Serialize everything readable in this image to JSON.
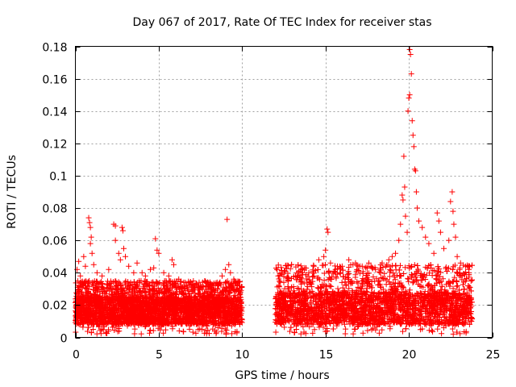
{
  "chart_data": {
    "type": "scatter",
    "title": "Day 067 of 2017, Rate Of TEC Index for receiver stas",
    "xlabel": "GPS time / hours",
    "ylabel": "ROTI / TECUs",
    "xlim": [
      0,
      25
    ],
    "ylim": [
      0,
      0.18
    ],
    "x_ticks": [
      0,
      5,
      10,
      15,
      20,
      25
    ],
    "x_tick_labels": [
      "0",
      "5",
      "10",
      "15",
      "20",
      "25"
    ],
    "y_ticks": [
      0,
      0.02,
      0.04,
      0.06,
      0.08,
      0.1,
      0.12,
      0.14,
      0.16,
      0.18
    ],
    "y_tick_labels": [
      "0",
      "0.02",
      "0.04",
      "0.06",
      "0.08",
      "0.1",
      "0.12",
      "0.14",
      "0.16",
      "0.18"
    ],
    "grid": true,
    "marker": "+",
    "color": "#ff0000",
    "series": [
      {
        "name": "ROTI",
        "segments": [
          {
            "x_range": [
              0,
              10
            ],
            "baseline": [
              0.008,
              0.025
            ],
            "typical_max": 0.035
          },
          {
            "x_range": [
              12,
              23.8
            ],
            "baseline": [
              0.008,
              0.028
            ],
            "typical_max": 0.045
          }
        ],
        "points": [
          [
            0.1,
            0.042
          ],
          [
            0.2,
            0.047
          ],
          [
            0.3,
            0.038
          ],
          [
            0.5,
            0.05
          ],
          [
            0.6,
            0.044
          ],
          [
            0.8,
            0.074
          ],
          [
            0.85,
            0.071
          ],
          [
            0.9,
            0.068
          ],
          [
            0.95,
            0.062
          ],
          [
            0.9,
            0.058
          ],
          [
            1.0,
            0.052
          ],
          [
            1.1,
            0.045
          ],
          [
            1.3,
            0.04
          ],
          [
            1.6,
            0.038
          ],
          [
            2.0,
            0.042
          ],
          [
            2.3,
            0.07
          ],
          [
            2.4,
            0.069
          ],
          [
            2.4,
            0.06
          ],
          [
            2.6,
            0.052
          ],
          [
            2.7,
            0.048
          ],
          [
            2.8,
            0.068
          ],
          [
            2.85,
            0.066
          ],
          [
            2.9,
            0.055
          ],
          [
            3.0,
            0.05
          ],
          [
            3.2,
            0.044
          ],
          [
            3.5,
            0.04
          ],
          [
            3.7,
            0.046
          ],
          [
            4.0,
            0.04
          ],
          [
            4.2,
            0.038
          ],
          [
            4.5,
            0.042
          ],
          [
            4.7,
            0.043
          ],
          [
            4.8,
            0.061
          ],
          [
            4.9,
            0.054
          ],
          [
            5.0,
            0.052
          ],
          [
            5.3,
            0.04
          ],
          [
            5.6,
            0.038
          ],
          [
            5.8,
            0.048
          ],
          [
            5.9,
            0.045
          ],
          [
            6.2,
            0.036
          ],
          [
            6.5,
            0.034
          ],
          [
            7.0,
            0.033
          ],
          [
            7.5,
            0.032
          ],
          [
            8.0,
            0.03
          ],
          [
            8.5,
            0.034
          ],
          [
            8.8,
            0.038
          ],
          [
            9.0,
            0.042
          ],
          [
            9.1,
            0.073
          ],
          [
            9.2,
            0.045
          ],
          [
            9.3,
            0.04
          ],
          [
            9.5,
            0.036
          ],
          [
            9.7,
            0.03
          ],
          [
            9.9,
            0.028
          ],
          [
            12.2,
            0.032
          ],
          [
            12.5,
            0.034
          ],
          [
            12.8,
            0.03
          ],
          [
            13.2,
            0.038
          ],
          [
            13.6,
            0.042
          ],
          [
            14.0,
            0.04
          ],
          [
            14.3,
            0.044
          ],
          [
            14.6,
            0.048
          ],
          [
            14.9,
            0.05
          ],
          [
            15.0,
            0.054
          ],
          [
            15.1,
            0.067
          ],
          [
            15.15,
            0.065
          ],
          [
            15.3,
            0.046
          ],
          [
            15.6,
            0.042
          ],
          [
            16.0,
            0.044
          ],
          [
            16.4,
            0.048
          ],
          [
            16.8,
            0.046
          ],
          [
            17.2,
            0.044
          ],
          [
            17.6,
            0.046
          ],
          [
            18.0,
            0.042
          ],
          [
            18.4,
            0.046
          ],
          [
            18.8,
            0.048
          ],
          [
            19.0,
            0.05
          ],
          [
            19.2,
            0.052
          ],
          [
            19.4,
            0.06
          ],
          [
            19.5,
            0.07
          ],
          [
            19.6,
            0.088
          ],
          [
            19.65,
            0.085
          ],
          [
            19.7,
            0.112
          ],
          [
            19.75,
            0.093
          ],
          [
            19.8,
            0.075
          ],
          [
            19.9,
            0.065
          ],
          [
            19.95,
            0.14
          ],
          [
            20.0,
            0.148
          ],
          [
            20.05,
            0.15
          ],
          [
            20.05,
            0.178
          ],
          [
            20.1,
            0.175
          ],
          [
            20.15,
            0.163
          ],
          [
            20.2,
            0.134
          ],
          [
            20.25,
            0.125
          ],
          [
            20.3,
            0.118
          ],
          [
            20.35,
            0.104
          ],
          [
            20.4,
            0.103
          ],
          [
            20.45,
            0.09
          ],
          [
            20.5,
            0.08
          ],
          [
            20.6,
            0.072
          ],
          [
            20.8,
            0.068
          ],
          [
            21.0,
            0.062
          ],
          [
            21.2,
            0.058
          ],
          [
            21.5,
            0.052
          ],
          [
            21.7,
            0.077
          ],
          [
            21.8,
            0.072
          ],
          [
            21.9,
            0.065
          ],
          [
            22.1,
            0.055
          ],
          [
            22.4,
            0.06
          ],
          [
            22.5,
            0.084
          ],
          [
            22.6,
            0.09
          ],
          [
            22.65,
            0.078
          ],
          [
            22.7,
            0.07
          ],
          [
            22.8,
            0.062
          ],
          [
            22.9,
            0.05
          ],
          [
            23.1,
            0.046
          ],
          [
            23.4,
            0.044
          ],
          [
            23.6,
            0.042
          ]
        ]
      }
    ]
  }
}
